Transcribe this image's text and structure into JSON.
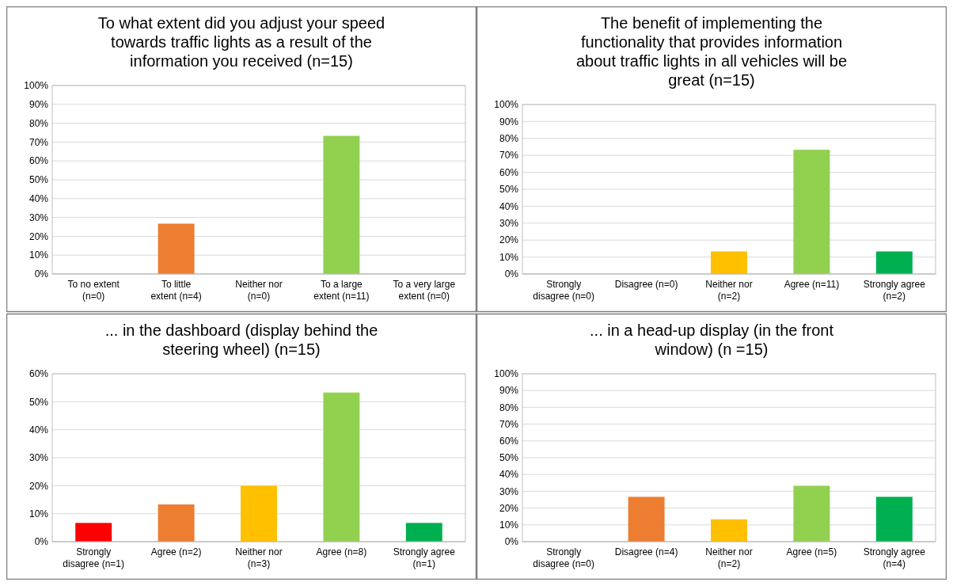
{
  "chart_data": [
    {
      "type": "bar",
      "title": "To what extent did you adjust your speed towards traffic lights as a result of the information you received (n=15)",
      "categories": [
        "To no extent (n=0)",
        "To little extent (n=4)",
        "Neither nor (n=0)",
        "To a large extent (n=11)",
        "To a very large extent (n=0)"
      ],
      "values": [
        0,
        26.7,
        0,
        73.3,
        0
      ],
      "colors": [
        "#ff0000",
        "#ed7d31",
        "#ffc000",
        "#92d050",
        "#00b050"
      ],
      "ylim": [
        0,
        100
      ],
      "yticks": [
        {
          "value": 0,
          "label": "0%"
        },
        {
          "value": 10,
          "label": "10%"
        },
        {
          "value": 20,
          "label": "20%"
        },
        {
          "value": 30,
          "label": "30%"
        },
        {
          "value": 40,
          "label": "40%"
        },
        {
          "value": 50,
          "label": "50%"
        },
        {
          "value": 60,
          "label": "60%"
        },
        {
          "value": 70,
          "label": "70%"
        },
        {
          "value": 80,
          "label": "80%"
        },
        {
          "value": 90,
          "label": "90%"
        },
        {
          "value": 100,
          "label": "100%"
        }
      ],
      "grid": "y"
    },
    {
      "type": "bar",
      "title": "The benefit of implementing the functionality that provides information about traffic lights in all vehicles will be great (n=15)",
      "categories": [
        "Strongly disagree (n=0)",
        "Disagree (n=0)",
        "Neither nor (n=2)",
        "Agree (n=11)",
        "Strongly agree (n=2)"
      ],
      "values": [
        0,
        0,
        13.3,
        73.3,
        13.3
      ],
      "colors": [
        "#ff0000",
        "#ed7d31",
        "#ffc000",
        "#92d050",
        "#00b050"
      ],
      "ylim": [
        0,
        100
      ],
      "yticks": [
        {
          "value": 0,
          "label": "0%"
        },
        {
          "value": 10,
          "label": "10%"
        },
        {
          "value": 20,
          "label": "20%"
        },
        {
          "value": 30,
          "label": "30%"
        },
        {
          "value": 40,
          "label": "40%"
        },
        {
          "value": 50,
          "label": "50%"
        },
        {
          "value": 60,
          "label": "60%"
        },
        {
          "value": 70,
          "label": "70%"
        },
        {
          "value": 80,
          "label": "80%"
        },
        {
          "value": 90,
          "label": "90%"
        },
        {
          "value": 100,
          "label": "100%"
        }
      ],
      "grid": "y"
    },
    {
      "type": "bar",
      "title": "... in the dashboard (display behind the steering wheel) (n=15)",
      "categories": [
        "Strongly disagree (n=1)",
        "Agree (n=2)",
        "Neither nor (n=3)",
        "Agree (n=8)",
        "Strongly agree (n=1)"
      ],
      "values": [
        6.7,
        13.3,
        20,
        53.3,
        6.7
      ],
      "colors": [
        "#ff0000",
        "#ed7d31",
        "#ffc000",
        "#92d050",
        "#00b050"
      ],
      "ylim": [
        0,
        60
      ],
      "yticks": [
        {
          "value": 0,
          "label": "0%"
        },
        {
          "value": 10,
          "label": "10%"
        },
        {
          "value": 20,
          "label": "20%"
        },
        {
          "value": 30,
          "label": "30%"
        },
        {
          "value": 40,
          "label": "40%"
        },
        {
          "value": 50,
          "label": "50%"
        },
        {
          "value": 60,
          "label": "60%"
        }
      ],
      "grid": "y"
    },
    {
      "type": "bar",
      "title": "... in a head-up display (in the front window) (n =15)",
      "categories": [
        "Strongly disagree (n=0)",
        "Disagree (n=4)",
        "Neither nor (n=2)",
        "Agree (n=5)",
        "Strongly agree (n=4)"
      ],
      "values": [
        0,
        26.7,
        13.3,
        33.3,
        26.7
      ],
      "colors": [
        "#ff0000",
        "#ed7d31",
        "#ffc000",
        "#92d050",
        "#00b050"
      ],
      "ylim": [
        0,
        100
      ],
      "yticks": [
        {
          "value": 0,
          "label": "0%"
        },
        {
          "value": 10,
          "label": "10%"
        },
        {
          "value": 20,
          "label": "20%"
        },
        {
          "value": 30,
          "label": "30%"
        },
        {
          "value": 40,
          "label": "40%"
        },
        {
          "value": 50,
          "label": "50%"
        },
        {
          "value": 60,
          "label": "60%"
        },
        {
          "value": 70,
          "label": "70%"
        },
        {
          "value": 80,
          "label": "80%"
        },
        {
          "value": 90,
          "label": "90%"
        },
        {
          "value": 100,
          "label": "100%"
        }
      ],
      "grid": "y"
    }
  ]
}
